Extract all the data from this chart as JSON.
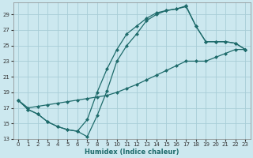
{
  "background_color": "#cce8ef",
  "grid_color": "#a8cdd6",
  "line_color": "#1e6b6b",
  "xlabel": "Humidex (Indice chaleur)",
  "xlim": [
    -0.5,
    23.5
  ],
  "ylim": [
    13,
    30.5
  ],
  "yticks": [
    13,
    15,
    17,
    19,
    21,
    23,
    25,
    27,
    29
  ],
  "xticks": [
    0,
    1,
    2,
    3,
    4,
    5,
    6,
    7,
    8,
    9,
    10,
    11,
    12,
    13,
    14,
    15,
    16,
    17,
    18,
    19,
    20,
    21,
    22,
    23
  ],
  "line1_x": [
    0,
    1,
    2,
    3,
    4,
    5,
    6,
    7,
    8,
    9,
    10,
    11,
    12,
    13,
    14,
    15,
    16,
    17,
    18,
    19,
    20,
    21,
    22,
    23
  ],
  "line1_y": [
    18.0,
    16.8,
    16.2,
    15.2,
    14.6,
    14.2,
    14.0,
    13.3,
    16.0,
    19.2,
    23.0,
    25.0,
    26.5,
    28.2,
    29.0,
    29.5,
    29.7,
    30.1,
    27.5,
    25.5,
    25.5,
    25.5,
    25.3,
    24.5
  ],
  "line2_x": [
    0,
    1,
    2,
    3,
    4,
    5,
    6,
    7,
    8,
    9,
    10,
    11,
    12,
    13,
    14,
    15,
    16,
    17,
    18,
    19,
    20,
    21,
    22,
    23
  ],
  "line2_y": [
    18.0,
    17.0,
    17.2,
    17.4,
    17.6,
    17.8,
    18.0,
    18.2,
    18.4,
    18.6,
    19.0,
    19.5,
    20.0,
    20.6,
    21.2,
    21.8,
    22.4,
    23.0,
    23.0,
    23.0,
    23.5,
    24.0,
    24.5,
    24.5
  ],
  "line3_x": [
    0,
    1,
    2,
    3,
    4,
    5,
    6,
    7,
    8,
    9,
    10,
    11,
    12,
    13,
    14,
    15,
    16,
    17,
    18,
    19,
    20,
    21,
    22,
    23
  ],
  "line3_y": [
    18.0,
    16.8,
    16.2,
    15.2,
    14.6,
    14.2,
    14.0,
    15.5,
    19.0,
    22.0,
    24.5,
    26.5,
    27.5,
    28.5,
    29.2,
    29.5,
    29.7,
    30.0,
    27.5,
    25.5,
    25.5,
    25.5,
    25.3,
    24.5
  ]
}
